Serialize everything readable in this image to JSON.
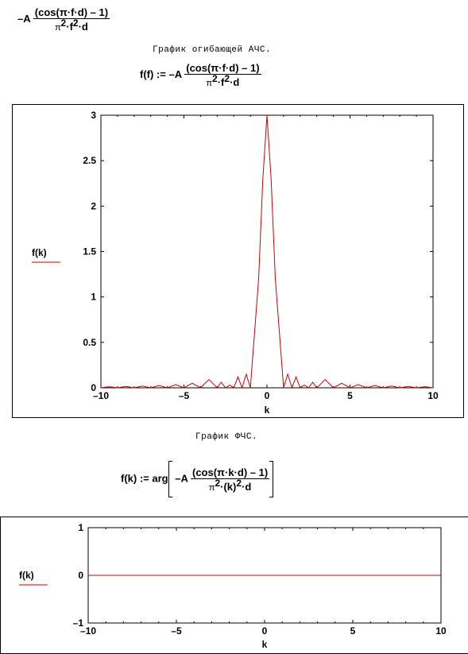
{
  "formula_top": {
    "prefix": "–A",
    "numerator": "(cos(π·f·d) – 1)",
    "denominator_pi": "π",
    "denominator_rest": "·f",
    "exp1": "2",
    "exp2": "2",
    "denominator_tail": "·d"
  },
  "amplitude_section": {
    "title": "График огибающей АЧС.",
    "def_lhs": "f(f) :=",
    "prefix": "–A",
    "numerator": "(cos(π·f·d) – 1)",
    "denominator_pi": "π",
    "denominator_rest": "·f",
    "exp1": "2",
    "exp2": "2",
    "denominator_tail": "·d"
  },
  "phase_section": {
    "title": "График ФЧС.",
    "def_lhs": "f(k) := arg",
    "prefix": "–A",
    "numerator": "(cos(π·k·d) – 1)",
    "denominator_pi": "π",
    "denominator_rest": "·(k)",
    "exp1": "2",
    "exp2": "2",
    "denominator_tail": "·d"
  },
  "chart_data": [
    {
      "type": "line",
      "ylabel": "f(k)",
      "xlabel": "k",
      "xlim": [
        -10,
        10
      ],
      "ylim": [
        0,
        3
      ],
      "x_ticks": [
        "–10",
        "–5",
        "0",
        "5",
        "10"
      ],
      "y_ticks": [
        "0",
        "0.5",
        "1",
        "1.5",
        "2",
        "2.5",
        "3"
      ],
      "series": [
        {
          "color": "#cc0000",
          "x": [
            -10,
            -9.5,
            -9,
            -8.5,
            -8,
            -7.5,
            -7,
            -6.5,
            -6,
            -5.5,
            -5,
            -4.5,
            -4,
            -3.5,
            -3,
            -2.75,
            -2.5,
            -2.25,
            -2,
            -1.75,
            -1.5,
            -1.25,
            -1,
            -0.75,
            -0.5,
            -0.25,
            0,
            0.25,
            0.5,
            0.75,
            1,
            1.25,
            1.5,
            1.75,
            2,
            2.25,
            2.5,
            2.75,
            3,
            3.5,
            4,
            4.5,
            5,
            5.5,
            6,
            6.5,
            7,
            7.5,
            8,
            8.5,
            9,
            9.5,
            10
          ],
          "y": [
            0,
            0.012,
            0,
            0.015,
            0,
            0.019,
            0,
            0.025,
            0,
            0.035,
            0,
            0.05,
            0,
            0.09,
            0,
            0.06,
            0,
            0.03,
            0,
            0.12,
            0,
            0.15,
            0,
            0.6,
            1.2,
            2.3,
            3,
            2.3,
            1.2,
            0.6,
            0,
            0.15,
            0,
            0.12,
            0,
            0.03,
            0,
            0.06,
            0,
            0.09,
            0,
            0.05,
            0,
            0.035,
            0,
            0.025,
            0,
            0.019,
            0,
            0.015,
            0,
            0.012,
            0
          ]
        }
      ]
    },
    {
      "type": "line",
      "ylabel": "f(k)",
      "xlabel": "k",
      "xlim": [
        -10,
        10
      ],
      "ylim": [
        -1,
        1
      ],
      "x_ticks": [
        "–10",
        "–5",
        "0",
        "5",
        "10"
      ],
      "y_ticks": [
        "1",
        "0",
        "–1"
      ],
      "series": [
        {
          "color": "#cc0000",
          "x": [
            -10,
            10
          ],
          "y": [
            0,
            0
          ]
        }
      ]
    }
  ]
}
